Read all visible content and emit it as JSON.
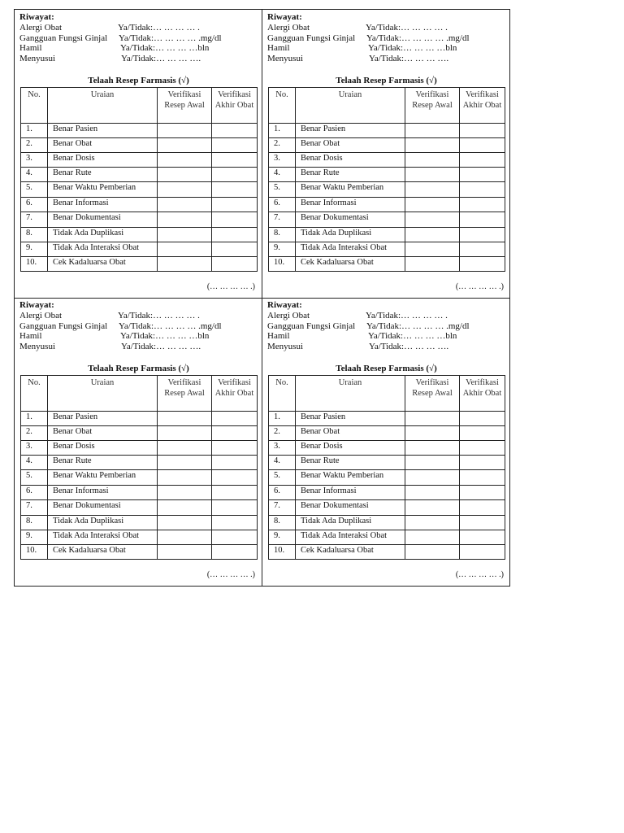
{
  "form": {
    "riwayat_label": "Riwayat:",
    "history": [
      {
        "label": "Alergi Obat",
        "value": "Ya/Tidak:… … … … ."
      },
      {
        "label": "Gangguan Fungsi Ginjal",
        "value": "Ya/Tidak:… … … … .mg/dl"
      },
      {
        "label": "Hamil",
        "value": "Ya/Tidak:… … … …bln"
      },
      {
        "label": "Menyusui",
        "value": "Ya/Tidak:… … … …."
      }
    ],
    "table_title": "Telaah Resep Farmasis (√)",
    "headers": {
      "no": "No.",
      "uraian": "Uraian",
      "verif_awal": "Verifikasi Resep Awal",
      "verif_akhir": "Verifikasi Akhir Obat"
    },
    "rows": [
      {
        "no": "1.",
        "uraian": "Benar Pasien"
      },
      {
        "no": "2.",
        "uraian": "Benar Obat"
      },
      {
        "no": "3.",
        "uraian": "Benar Dosis"
      },
      {
        "no": "4.",
        "uraian": "Benar Rute"
      },
      {
        "no": "5.",
        "uraian": "Benar Waktu Pemberian"
      },
      {
        "no": "6.",
        "uraian": "Benar Informasi"
      },
      {
        "no": "7.",
        "uraian": "Benar Dokumentasi"
      },
      {
        "no": "8.",
        "uraian": "Tidak Ada Duplikasi"
      },
      {
        "no": "9.",
        "uraian": "Tidak Ada Interaksi Obat"
      },
      {
        "no": "10.",
        "uraian": "Cek Kadaluarsa Obat"
      }
    ],
    "signature": "(… … … … .)"
  }
}
